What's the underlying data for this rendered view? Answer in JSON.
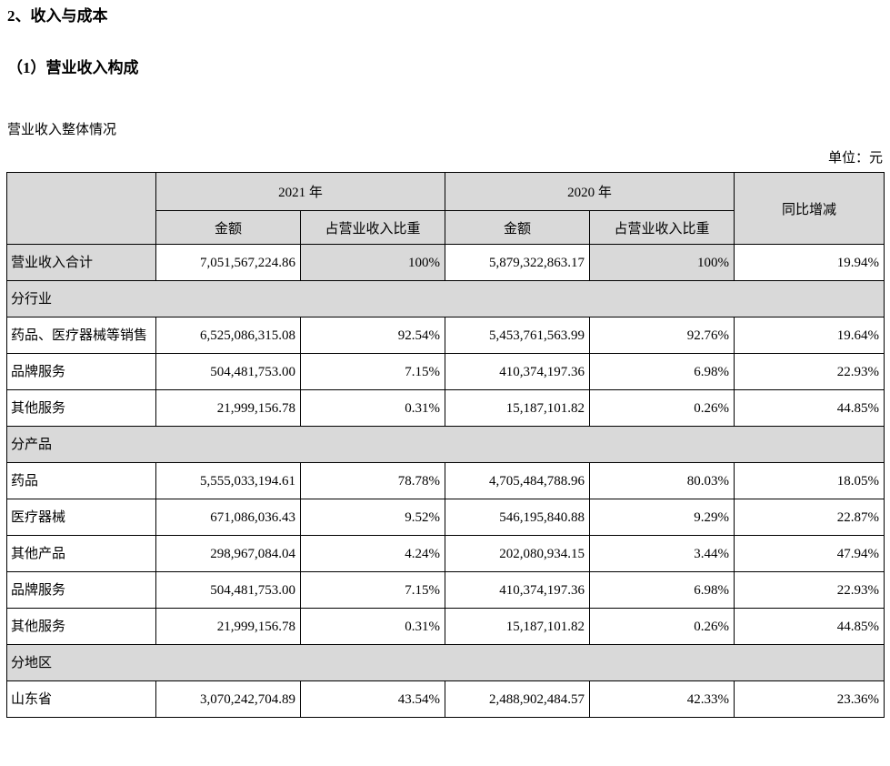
{
  "page": {
    "title": "2、收入与成本",
    "subtitle": "（1）营业收入构成",
    "intro": "营业收入整体情况",
    "unit_label": "单位：元"
  },
  "colors": {
    "shaded_cell": "#d9d9d9",
    "border": "#000000",
    "text": "#000000"
  },
  "table": {
    "header": {
      "year_2021": "2021 年",
      "year_2020": "2020 年",
      "amount": "金额",
      "ratio": "占营业收入比重",
      "yoy": "同比增减"
    },
    "rows": [
      {
        "variant": "total",
        "label": "营业收入合计",
        "cells": [
          "7,051,567,224.86",
          "100%",
          "5,879,322,863.17",
          "100%",
          "19.94%"
        ]
      },
      {
        "variant": "section",
        "label": "分行业"
      },
      {
        "variant": "normal",
        "label": "药品、医疗器械等销售",
        "cells": [
          "6,525,086,315.08",
          "92.54%",
          "5,453,761,563.99",
          "92.76%",
          "19.64%"
        ]
      },
      {
        "variant": "normal",
        "label": "品牌服务",
        "cells": [
          "504,481,753.00",
          "7.15%",
          "410,374,197.36",
          "6.98%",
          "22.93%"
        ]
      },
      {
        "variant": "normal",
        "label": "其他服务",
        "cells": [
          "21,999,156.78",
          "0.31%",
          "15,187,101.82",
          "0.26%",
          "44.85%"
        ]
      },
      {
        "variant": "section",
        "label": "分产品"
      },
      {
        "variant": "normal",
        "label": "药品",
        "cells": [
          "5,555,033,194.61",
          "78.78%",
          "4,705,484,788.96",
          "80.03%",
          "18.05%"
        ]
      },
      {
        "variant": "normal",
        "label": "医疗器械",
        "cells": [
          "671,086,036.43",
          "9.52%",
          "546,195,840.88",
          "9.29%",
          "22.87%"
        ]
      },
      {
        "variant": "normal",
        "label": "其他产品",
        "cells": [
          "298,967,084.04",
          "4.24%",
          "202,080,934.15",
          "3.44%",
          "47.94%"
        ]
      },
      {
        "variant": "normal",
        "label": "品牌服务",
        "cells": [
          "504,481,753.00",
          "7.15%",
          "410,374,197.36",
          "6.98%",
          "22.93%"
        ]
      },
      {
        "variant": "normal",
        "label": "其他服务",
        "cells": [
          "21,999,156.78",
          "0.31%",
          "15,187,101.82",
          "0.26%",
          "44.85%"
        ]
      },
      {
        "variant": "section",
        "label": "分地区"
      },
      {
        "variant": "normal",
        "label": "山东省",
        "cells": [
          "3,070,242,704.89",
          "43.54%",
          "2,488,902,484.57",
          "42.33%",
          "23.36%"
        ]
      }
    ]
  }
}
